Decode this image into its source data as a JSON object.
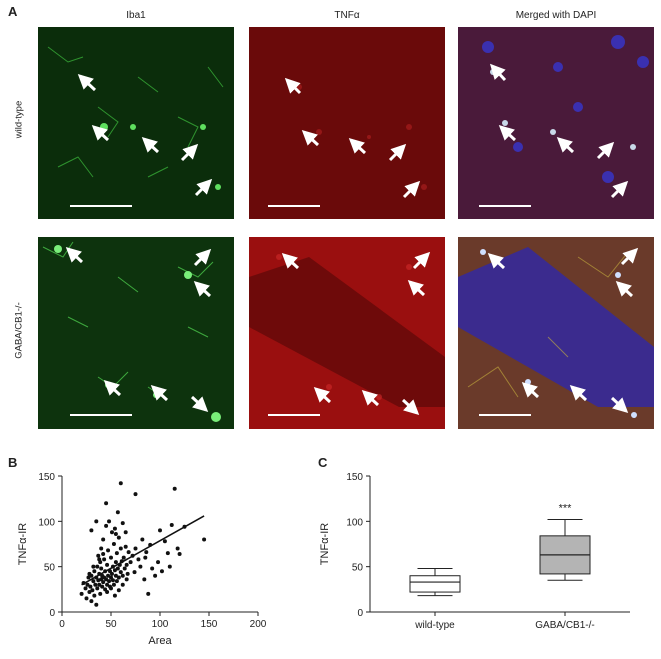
{
  "panelA": {
    "letter": "A",
    "columns": [
      "Iba1",
      "TNFα",
      "Merged with DAPI"
    ],
    "rows": [
      "wild-type",
      "GABA/CB1-/-"
    ],
    "channel_colors": {
      "iba1": "#1f7a1f",
      "tnf": "#a01010",
      "merged": "#6a3a5a",
      "dapi": "#3030c0"
    }
  },
  "panelB": {
    "letter": "B",
    "chart_data": {
      "type": "scatter",
      "title": "",
      "xlabel": "Area",
      "ylabel": "TNFα-IR",
      "xlim": [
        0,
        200
      ],
      "ylim": [
        0,
        150
      ],
      "xticks": [
        0,
        50,
        100,
        150,
        200
      ],
      "yticks": [
        0,
        50,
        100,
        150
      ],
      "points": [
        [
          20,
          20
        ],
        [
          22,
          32
        ],
        [
          24,
          26
        ],
        [
          25,
          15
        ],
        [
          26,
          30
        ],
        [
          27,
          38
        ],
        [
          28,
          22
        ],
        [
          29,
          28
        ],
        [
          30,
          12
        ],
        [
          30,
          40
        ],
        [
          31,
          24
        ],
        [
          32,
          34
        ],
        [
          33,
          18
        ],
        [
          33,
          45
        ],
        [
          34,
          30
        ],
        [
          35,
          38
        ],
        [
          35,
          8
        ],
        [
          36,
          26
        ],
        [
          36,
          50
        ],
        [
          37,
          35
        ],
        [
          37,
          62
        ],
        [
          38,
          30
        ],
        [
          38,
          42
        ],
        [
          39,
          20
        ],
        [
          39,
          55
        ],
        [
          40,
          36
        ],
        [
          40,
          48
        ],
        [
          40,
          70
        ],
        [
          41,
          28
        ],
        [
          41,
          40
        ],
        [
          42,
          33
        ],
        [
          42,
          80
        ],
        [
          43,
          38
        ],
        [
          43,
          58
        ],
        [
          44,
          25
        ],
        [
          44,
          45
        ],
        [
          45,
          36
        ],
        [
          45,
          95
        ],
        [
          46,
          30
        ],
        [
          46,
          52
        ],
        [
          47,
          40
        ],
        [
          47,
          68
        ],
        [
          48,
          34
        ],
        [
          48,
          100
        ],
        [
          49,
          45
        ],
        [
          49,
          28
        ],
        [
          50,
          38
        ],
        [
          50,
          60
        ],
        [
          51,
          42
        ],
        [
          51,
          88
        ],
        [
          52,
          35
        ],
        [
          52,
          50
        ],
        [
          53,
          30
        ],
        [
          53,
          75
        ],
        [
          54,
          46
        ],
        [
          54,
          92
        ],
        [
          55,
          40
        ],
        [
          55,
          55
        ],
        [
          56,
          34
        ],
        [
          56,
          65
        ],
        [
          57,
          48
        ],
        [
          57,
          110
        ],
        [
          58,
          38
        ],
        [
          58,
          82
        ],
        [
          59,
          52
        ],
        [
          60,
          44
        ],
        [
          60,
          70
        ],
        [
          61,
          56
        ],
        [
          62,
          40
        ],
        [
          62,
          98
        ],
        [
          63,
          60
        ],
        [
          64,
          48
        ],
        [
          65,
          72
        ],
        [
          66,
          52
        ],
        [
          67,
          42
        ],
        [
          68,
          66
        ],
        [
          70,
          55
        ],
        [
          72,
          62
        ],
        [
          74,
          44
        ],
        [
          75,
          70
        ],
        [
          78,
          58
        ],
        [
          80,
          50
        ],
        [
          82,
          80
        ],
        [
          84,
          36
        ],
        [
          86,
          66
        ],
        [
          88,
          20
        ],
        [
          90,
          74
        ],
        [
          92,
          48
        ],
        [
          95,
          40
        ],
        [
          98,
          55
        ],
        [
          100,
          90
        ],
        [
          102,
          45
        ],
        [
          105,
          78
        ],
        [
          108,
          65
        ],
        [
          110,
          50
        ],
        [
          112,
          96
        ],
        [
          115,
          136
        ],
        [
          118,
          70
        ],
        [
          120,
          64
        ],
        [
          125,
          94
        ],
        [
          60,
          142
        ],
        [
          75,
          130
        ],
        [
          55,
          86
        ],
        [
          30,
          90
        ],
        [
          35,
          100
        ],
        [
          45,
          120
        ],
        [
          65,
          88
        ],
        [
          85,
          60
        ],
        [
          145,
          80
        ],
        [
          28,
          42
        ],
        [
          32,
          50
        ],
        [
          38,
          58
        ],
        [
          42,
          64
        ],
        [
          46,
          22
        ],
        [
          50,
          26
        ],
        [
          54,
          18
        ],
        [
          58,
          24
        ],
        [
          62,
          30
        ],
        [
          66,
          36
        ]
      ],
      "fit_line": {
        "x": [
          20,
          145
        ],
        "y": [
          30,
          106
        ]
      }
    }
  },
  "panelC": {
    "letter": "C",
    "chart_data": {
      "type": "box",
      "title": "",
      "xlabel": "",
      "ylabel": "TNFα-IR",
      "ylim": [
        0,
        150
      ],
      "yticks": [
        0,
        50,
        100,
        150
      ],
      "categories": [
        "wild-type",
        "GABA/CB1-/-"
      ],
      "boxes": [
        {
          "name": "wild-type",
          "min": 18,
          "q1": 22,
          "median": 33,
          "q3": 40,
          "max": 48,
          "fill": "#ffffff"
        },
        {
          "name": "GABA/CB1-/-",
          "min": 35,
          "q1": 42,
          "median": 63,
          "q3": 84,
          "max": 102,
          "fill": "#b4b4b4"
        }
      ],
      "annotations": [
        {
          "category": "GABA/CB1-/-",
          "text": "***"
        }
      ]
    }
  }
}
